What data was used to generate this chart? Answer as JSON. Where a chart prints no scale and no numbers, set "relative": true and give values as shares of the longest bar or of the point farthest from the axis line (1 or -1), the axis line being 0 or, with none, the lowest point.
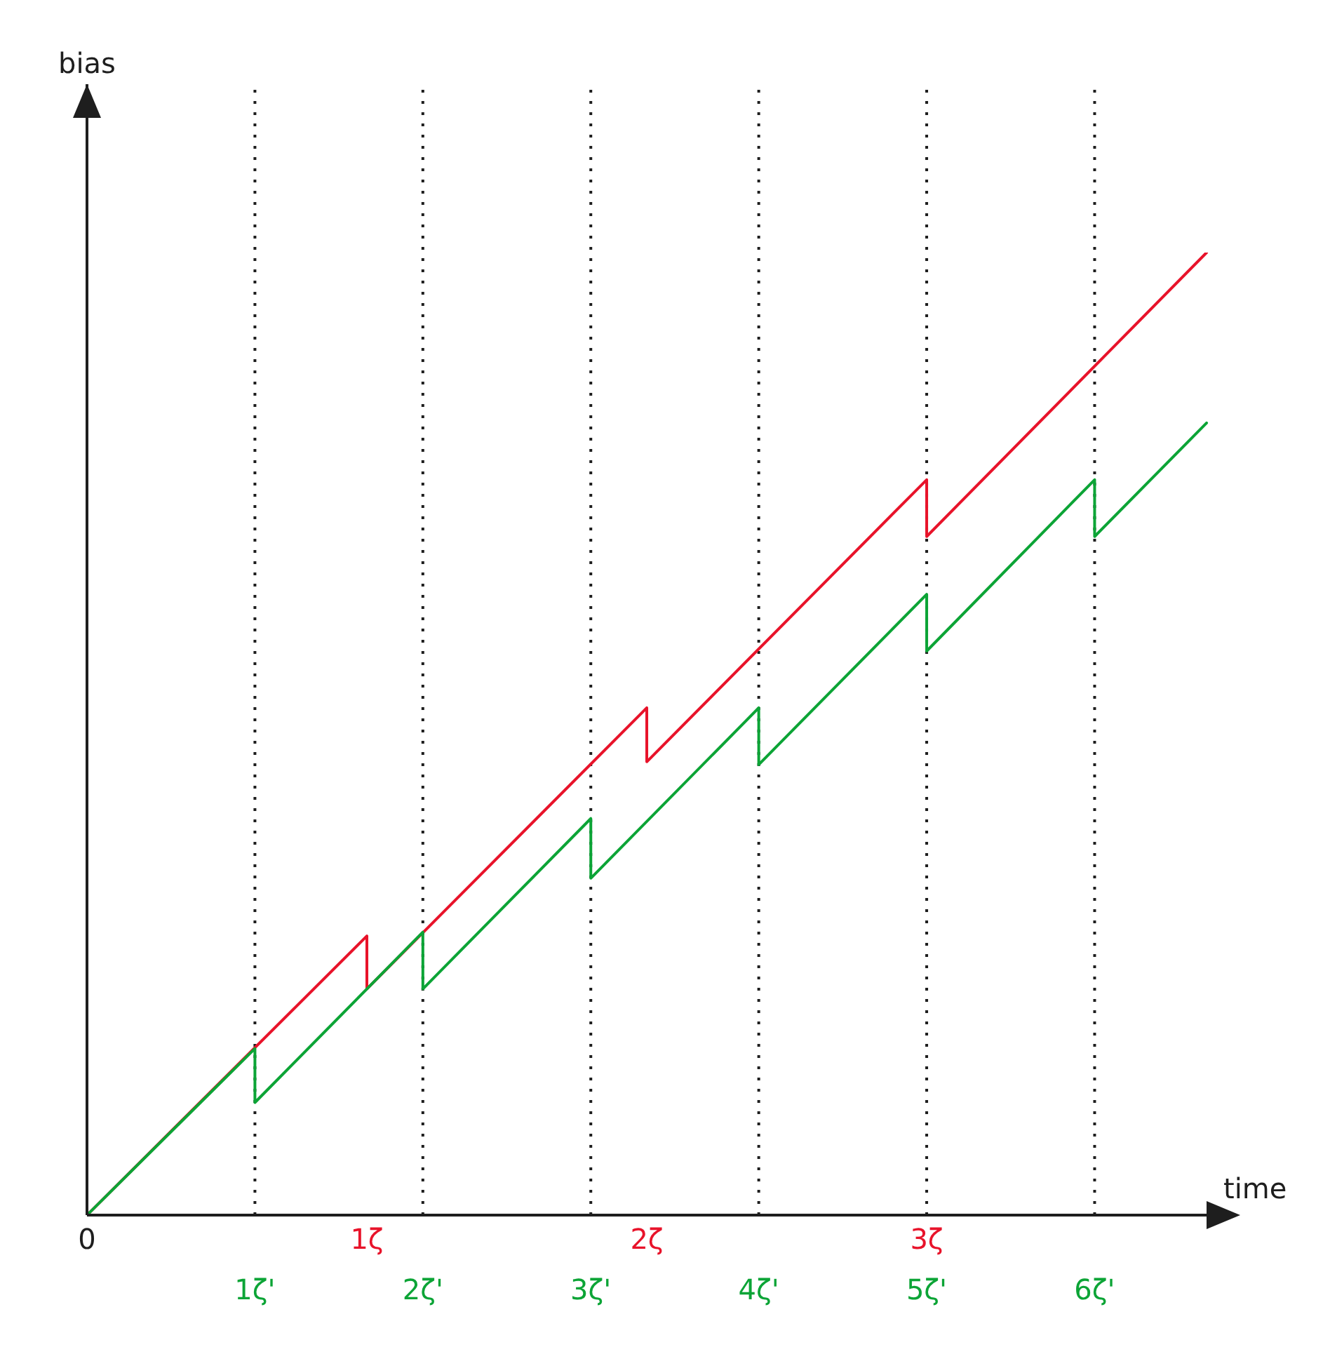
{
  "chart_data": {
    "type": "line",
    "relative": true,
    "xlabel": "time",
    "annotations": [
      "bias"
    ],
    "xlim": [
      0,
      4.05
    ],
    "xticks": [
      {
        "value": 0,
        "label": "0"
      },
      {
        "value": 1,
        "label": "1ζ"
      },
      {
        "value": 2,
        "label": "2ζ"
      },
      {
        "value": 3,
        "label": "3ζ"
      }
    ],
    "x2lim": [
      0,
      6.75
    ],
    "x2ticks": [
      {
        "value": 1,
        "label": "1ζ'"
      },
      {
        "value": 2,
        "label": "2ζ'"
      },
      {
        "value": 3,
        "label": "3ζ'"
      },
      {
        "value": 4,
        "label": "4ζ'"
      },
      {
        "value": 5,
        "label": "5ζ'"
      },
      {
        "value": 6,
        "label": "6ζ'"
      }
    ],
    "series": [
      {
        "color": "#e8132a",
        "x": [
          0,
          1,
          1,
          2,
          2,
          3,
          3,
          4
        ],
        "values": [
          0,
          0.29,
          0.235,
          0.527,
          0.471,
          0.764,
          0.705,
          1
        ]
      },
      {
        "color": "#0ca436",
        "x": [
          0,
          0.6,
          0.6,
          1.2,
          1.2,
          1.8,
          1.8,
          2.4,
          2.4,
          3,
          3,
          3.6,
          3.6,
          4
        ],
        "values": [
          0,
          0.173,
          0.117,
          0.294,
          0.235,
          0.412,
          0.35,
          0.527,
          0.468,
          0.645,
          0.586,
          0.764,
          0.705,
          0.823
        ]
      }
    ],
    "ref_lines": [
      {
        "axis": "x2",
        "value": 1,
        "line_style": "dotted",
        "color": "#1e1e1e"
      },
      {
        "axis": "x2",
        "value": 2,
        "line_style": "dotted",
        "color": "#1e1e1e"
      },
      {
        "axis": "x2",
        "value": 3,
        "line_style": "dotted",
        "color": "#1e1e1e"
      },
      {
        "axis": "x2",
        "value": 4,
        "line_style": "dotted",
        "color": "#1e1e1e"
      },
      {
        "axis": "x2",
        "value": 5,
        "line_style": "dotted",
        "color": "#1e1e1e"
      },
      {
        "axis": "x2",
        "value": 6,
        "line_style": "dotted",
        "color": "#1e1e1e"
      }
    ]
  }
}
